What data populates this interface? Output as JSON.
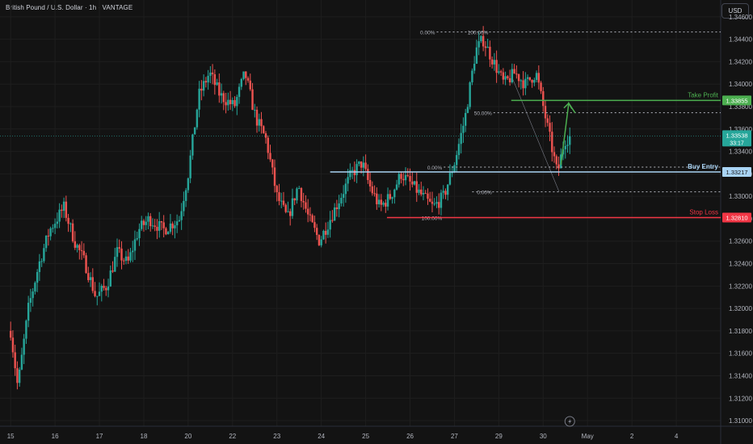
{
  "header": {
    "title": "British Pound / U.S. Dollar · 1h · VANTAGE",
    "currency_button": "USD"
  },
  "colors": {
    "background": "#131313",
    "up": "#26a69a",
    "down": "#ef5350",
    "grid": "#1e1e1e",
    "axis_text": "#b2b5be",
    "buy_line": "#a9d4f5",
    "stop_line": "#f23645",
    "tp_line": "#4caf50",
    "fib_dotted": "#b2b5be"
  },
  "icons": {
    "bottom_time_icon": "lightning-icon"
  },
  "chart_data": {
    "type": "candlestick",
    "symbol": "GBPUSD",
    "timeframe": "1h",
    "ylim": [
      1.3095,
      1.3475
    ],
    "y_ticks": [
      1.31,
      1.312,
      1.314,
      1.316,
      1.318,
      1.32,
      1.322,
      1.324,
      1.326,
      1.328,
      1.33,
      1.332,
      1.334,
      1.336,
      1.338,
      1.34,
      1.342,
      1.344,
      1.346
    ],
    "y_tick_labels": [
      "1.31000",
      "1.31200",
      "1.31400",
      "1.31600",
      "1.31800",
      "1.32000",
      "1.32200",
      "1.32400",
      "1.32600",
      "1.32800",
      "1.33000",
      "1.33200",
      "1.33400",
      "1.33600",
      "1.33800",
      "1.34000",
      "1.34200",
      "1.34400",
      "1.34600"
    ],
    "x_tick_labels": [
      "15",
      "16",
      "17",
      "18",
      "20",
      "22",
      "23",
      "24",
      "25",
      "26",
      "27",
      "29",
      "30",
      "May",
      "2",
      "4"
    ],
    "x_tick_positions": [
      0.0,
      25,
      50,
      75,
      100,
      125,
      150,
      175,
      200,
      225,
      250,
      275,
      300,
      325,
      350,
      375
    ],
    "x_range": [
      -6,
      400
    ],
    "path": [
      [
        0,
        1.318
      ],
      [
        4,
        1.313
      ],
      [
        10,
        1.32
      ],
      [
        16,
        1.324
      ],
      [
        22,
        1.327
      ],
      [
        30,
        1.329
      ],
      [
        36,
        1.326
      ],
      [
        42,
        1.324
      ],
      [
        48,
        1.321
      ],
      [
        54,
        1.322
      ],
      [
        60,
        1.325
      ],
      [
        66,
        1.324
      ],
      [
        72,
        1.327
      ],
      [
        78,
        1.328
      ],
      [
        86,
        1.327
      ],
      [
        95,
        1.328
      ],
      [
        100,
        1.332
      ],
      [
        106,
        1.339
      ],
      [
        112,
        1.341
      ],
      [
        118,
        1.339
      ],
      [
        126,
        1.338
      ],
      [
        132,
        1.341
      ],
      [
        138,
        1.337
      ],
      [
        144,
        1.335
      ],
      [
        150,
        1.33
      ],
      [
        156,
        1.328
      ],
      [
        162,
        1.331
      ],
      [
        168,
        1.328
      ],
      [
        174,
        1.326
      ],
      [
        180,
        1.328
      ],
      [
        186,
        1.33
      ],
      [
        192,
        1.332
      ],
      [
        198,
        1.333
      ],
      [
        202,
        1.331
      ],
      [
        208,
        1.329
      ],
      [
        214,
        1.33
      ],
      [
        220,
        1.332
      ],
      [
        226,
        1.331
      ],
      [
        232,
        1.33
      ],
      [
        238,
        1.329
      ],
      [
        244,
        1.33
      ],
      [
        250,
        1.333
      ],
      [
        256,
        1.337
      ],
      [
        262,
        1.343
      ],
      [
        266,
        1.344
      ],
      [
        272,
        1.342
      ],
      [
        278,
        1.34
      ],
      [
        284,
        1.341
      ],
      [
        290,
        1.34
      ],
      [
        296,
        1.341
      ],
      [
        300,
        1.338
      ],
      [
        304,
        1.335
      ],
      [
        308,
        1.332
      ],
      [
        312,
        1.335
      ],
      [
        316,
        1.3354
      ]
    ],
    "price_labels": [
      {
        "label": "Take Profit",
        "value": 1.33855,
        "value_label": "1.33855"
      },
      {
        "label": "Buy Entry",
        "value": 1.33217,
        "value_label": "1.33217"
      },
      {
        "label": "Stop Loss",
        "value": 1.3281,
        "value_label": "1.32810"
      }
    ],
    "current_price": {
      "value": 1.33538,
      "value_label": "1.33538",
      "countdown": "33:17"
    },
    "fib_upper": {
      "levels": [
        {
          "ratio_label": "0.00%",
          "value": 1.34465
        },
        {
          "ratio_label": "100.00%",
          "value": 1.34465
        },
        {
          "ratio_label": "50.00%",
          "value": 1.33745
        },
        {
          "ratio_label": "0.00%",
          "value": 1.3304
        }
      ]
    },
    "fib_lower": {
      "levels": [
        {
          "ratio_label": "0.00%",
          "value": 1.3326
        },
        {
          "ratio_label": "100.00%",
          "value": 1.3281
        }
      ]
    },
    "projection_arrow": {
      "from": [
        310,
        1.3328
      ],
      "to": [
        318,
        1.3383
      ]
    }
  }
}
